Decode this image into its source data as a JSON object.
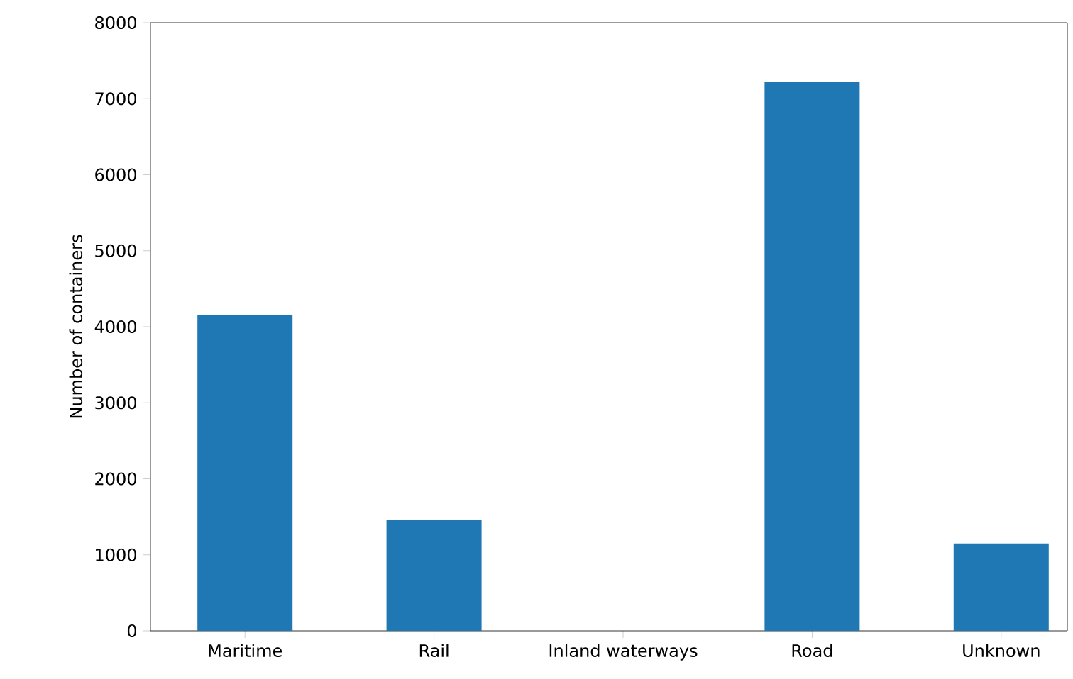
{
  "chart_data": {
    "type": "bar",
    "ylabel": "Number of containers",
    "categories": [
      "Maritime",
      "Rail",
      "Inland waterways",
      "Road",
      "Unknown"
    ],
    "values": [
      4150,
      1460,
      0,
      7220,
      1150
    ],
    "color": "#1f77b4",
    "ylim": [
      0,
      8000
    ],
    "yticks": [
      0,
      1000,
      2000,
      3000,
      4000,
      5000,
      6000,
      7000,
      8000
    ],
    "grid": false
  }
}
